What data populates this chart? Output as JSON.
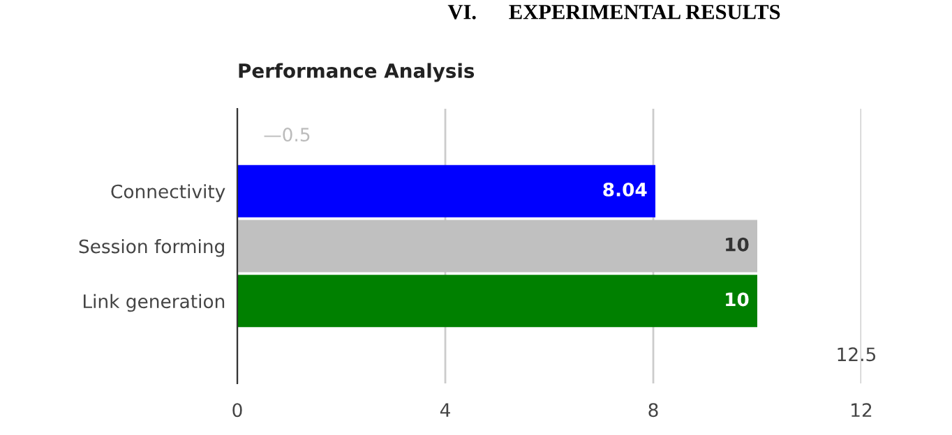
{
  "chart_data": {
    "type": "bar",
    "orientation": "horizontal",
    "title": "Performance Analysis",
    "annotations": [
      "VI.      EXPERIMENTAL RESULTS",
      "—0.5",
      "12.5"
    ],
    "categories": [
      "Connectivity",
      "Session forming",
      "Link generation"
    ],
    "values": [
      8.04,
      10,
      10
    ],
    "colors": [
      "#0000ff",
      "#c0c0c0",
      "#008000"
    ],
    "xlim": [
      0,
      12
    ],
    "xticks": [
      0,
      4,
      8,
      12
    ],
    "grid": "x",
    "data_labels": true
  }
}
